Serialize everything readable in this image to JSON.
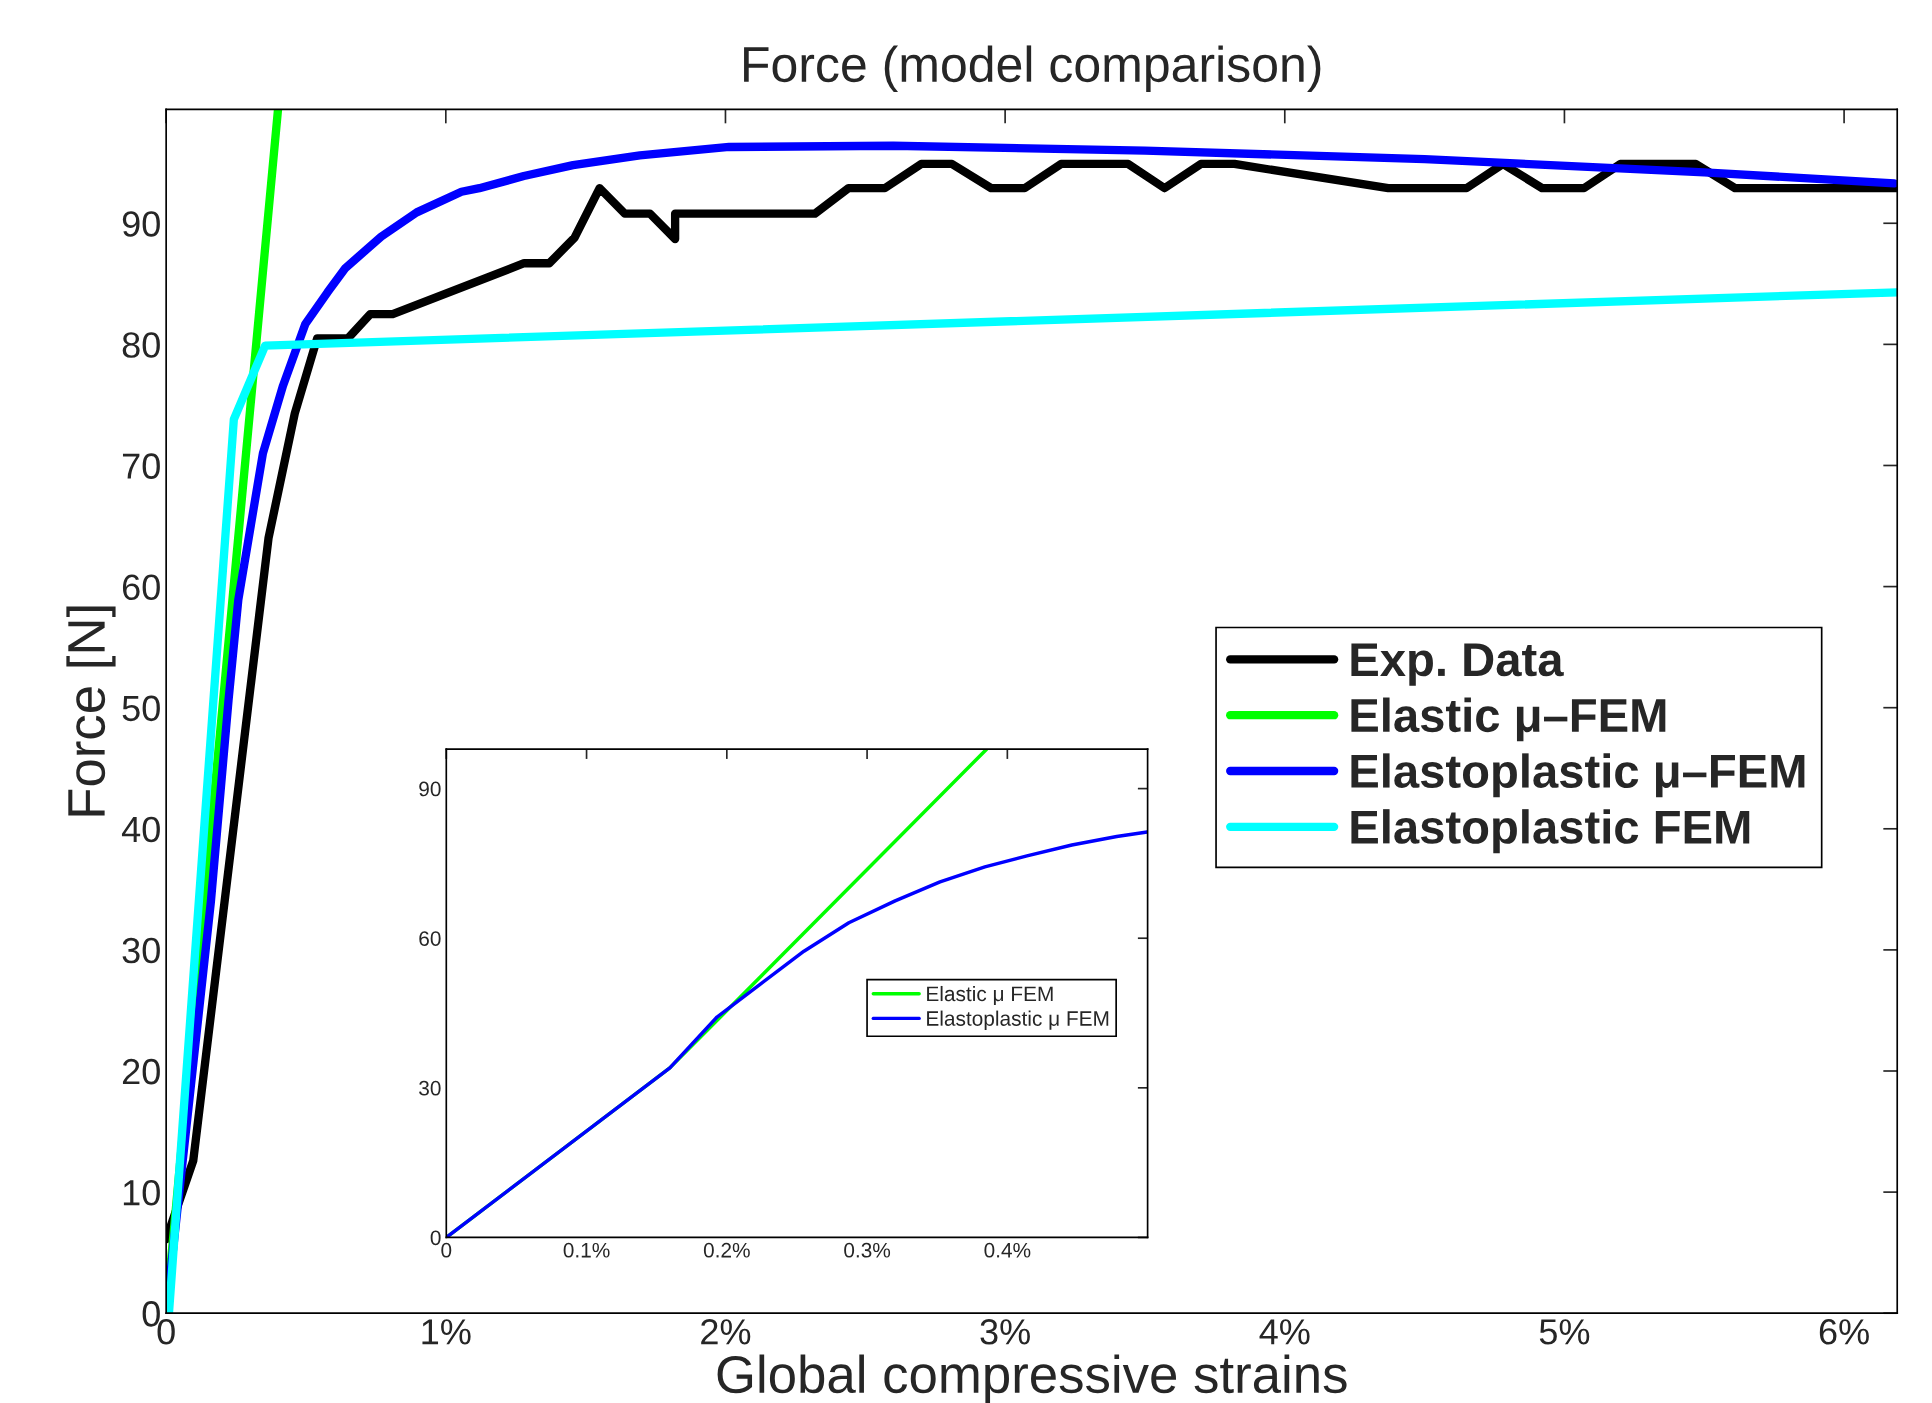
{
  "chart_data": [
    {
      "type": "line",
      "title": "Force (model comparison)",
      "xlabel": "Global compressive strains",
      "ylabel": "Force [N]",
      "xlim": [
        0,
        6.19
      ],
      "ylim": [
        0,
        99.4
      ],
      "xticks": [
        0,
        {
          "value": 1,
          "label": "1%"
        },
        {
          "value": 2,
          "label": "2%"
        },
        {
          "value": 3,
          "label": "3%"
        },
        {
          "value": 4,
          "label": "4%"
        },
        {
          "value": 5,
          "label": "5%"
        },
        {
          "value": 6,
          "label": "6%"
        }
      ],
      "yticks": [
        0,
        10,
        20,
        30,
        40,
        50,
        60,
        70,
        80,
        90
      ],
      "grid": false,
      "legend": "right",
      "marker": "none",
      "line_style": "solid",
      "series": [
        {
          "name": "Exp. Data",
          "color": "#000000",
          "x": [
            0,
            0.097,
            0.366,
            0.46,
            0.54,
            0.65,
            0.73,
            0.81,
            1.28,
            1.37,
            1.46,
            1.55,
            1.64,
            1.73,
            1.82,
            1.82,
            2.32,
            2.44,
            2.57,
            2.7,
            2.81,
            2.95,
            3.07,
            3.2,
            3.44,
            3.57,
            3.7,
            3.82,
            4.37,
            4.65,
            4.78,
            4.92,
            5.07,
            5.2,
            5.47,
            5.61,
            6.19
          ],
          "values": [
            6.1,
            12.6,
            64,
            74.3,
            80.5,
            80.5,
            82.5,
            82.5,
            86.7,
            86.7,
            88.8,
            92.9,
            90.8,
            90.8,
            88.7,
            90.8,
            90.8,
            92.9,
            92.9,
            94.9,
            94.9,
            92.9,
            92.9,
            94.9,
            94.9,
            92.9,
            94.9,
            94.9,
            92.9,
            92.9,
            94.9,
            92.9,
            92.9,
            94.9,
            94.9,
            92.9,
            92.9
          ]
        },
        {
          "name": "Elastic μ–FEM",
          "color": "#00ff00",
          "x": [
            0,
            0.4
          ],
          "values": [
            0,
            99.4
          ]
        },
        {
          "name": "Elastoplastic μ–FEM",
          "color": "#0000ff",
          "x": [
            0,
            0.16,
            0.223,
            0.258,
            0.346,
            0.418,
            0.498,
            0.577,
            0.641,
            0.769,
            0.896,
            1.056,
            1.12,
            1.279,
            1.455,
            1.694,
            2.013,
            2.6,
            3.5,
            4.5,
            5.5,
            6.18
          ],
          "values": [
            0,
            34,
            50.6,
            58.9,
            71,
            76.6,
            81.7,
            84.3,
            86.3,
            88.9,
            90.9,
            92.6,
            92.9,
            93.9,
            94.8,
            95.6,
            96.3,
            96.4,
            96.0,
            95.3,
            94.2,
            93.3
          ]
        },
        {
          "name": "Elastoplastic FEM",
          "color": "#00ffff",
          "x": [
            0.01,
            0.242,
            0.354,
            6.19
          ],
          "values": [
            0,
            73.8,
            79.9,
            84.3
          ]
        }
      ]
    },
    {
      "type": "line",
      "xlim": [
        0,
        0.5
      ],
      "ylim": [
        0,
        97.9
      ],
      "xticks": [
        0,
        {
          "value": 0.1,
          "label": "0.1%"
        },
        {
          "value": 0.2,
          "label": "0.2%"
        },
        {
          "value": 0.3,
          "label": "0.3%"
        },
        {
          "value": 0.4,
          "label": "0.4%"
        }
      ],
      "yticks": [
        0,
        30,
        60,
        90
      ],
      "grid": false,
      "legend": "right",
      "marker": "none",
      "line_style": "solid",
      "series": [
        {
          "name": "Elastic μ FEM",
          "color": "#00ff00",
          "x": [
            0,
            0.1594,
            0.3852
          ],
          "values": [
            0,
            34.0,
            97.9
          ]
        },
        {
          "name": "Elastoplastic μ FEM",
          "color": "#0000ff",
          "x": [
            0,
            0.1594,
            0.193,
            0.223,
            0.255,
            0.287,
            0.32,
            0.352,
            0.384,
            0.414,
            0.446,
            0.478,
            0.4997
          ],
          "values": [
            0,
            34,
            44.2,
            50.6,
            57.4,
            63.1,
            67.5,
            71.3,
            74.3,
            76.5,
            78.7,
            80.4,
            81.3
          ]
        }
      ]
    }
  ]
}
